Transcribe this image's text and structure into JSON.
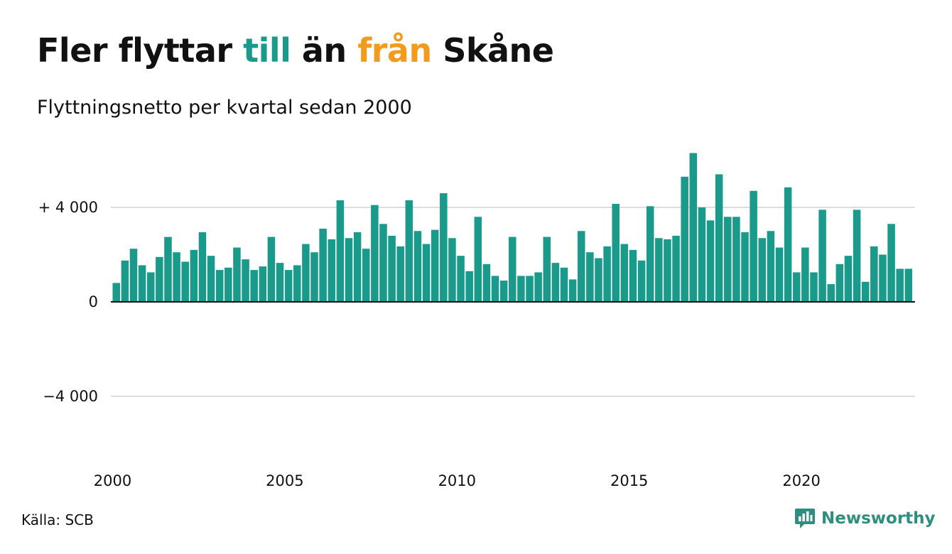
{
  "title": {
    "part1": "Fler flyttar ",
    "part2": "till",
    "part3": " än ",
    "part4": "från",
    "part5": " Skåne"
  },
  "subtitle": "Flyttningsnetto per kvartal sedan 2000",
  "source": "Källa: SCB",
  "brand": {
    "name": "Newsworthy",
    "icon": "newsworthy-logo-icon"
  },
  "colors": {
    "bar": "#1a9a8b",
    "till": "#1a9a8b",
    "fran": "#f29b1d",
    "grid": "#dddddd",
    "axis": "#111111",
    "brand": "#2f8f7f"
  },
  "chart_data": {
    "type": "bar",
    "title": "Fler flyttar till än från Skåne",
    "subtitle": "Flyttningsnetto per kvartal sedan 2000",
    "xlabel": "",
    "ylabel": "",
    "x_start_year": 2000,
    "periods_per_year": 4,
    "ylim": [
      -6500,
      6500
    ],
    "yticks": [
      {
        "value": 4000,
        "label": "+ 4 000"
      },
      {
        "value": 0,
        "label": "0"
      },
      {
        "value": -4000,
        "label": "−4 000"
      }
    ],
    "xticks": [
      {
        "year": 2000,
        "label": "2000"
      },
      {
        "year": 2005,
        "label": "2005"
      },
      {
        "year": 2010,
        "label": "2010"
      },
      {
        "year": 2015,
        "label": "2015"
      },
      {
        "year": 2020,
        "label": "2020"
      }
    ],
    "grid": true,
    "values": [
      800,
      1750,
      2250,
      1550,
      1250,
      1900,
      2750,
      2100,
      1700,
      2200,
      2950,
      1950,
      1350,
      1450,
      2300,
      1800,
      1350,
      1500,
      2750,
      1650,
      1350,
      1550,
      2450,
      2100,
      3100,
      2650,
      4300,
      2700,
      2950,
      2250,
      4100,
      3300,
      2800,
      2350,
      4300,
      3000,
      2450,
      3050,
      4600,
      2700,
      1950,
      1300,
      3600,
      1600,
      1100,
      900,
      2750,
      1100,
      1100,
      1250,
      2750,
      1650,
      1450,
      950,
      3000,
      2100,
      1850,
      2350,
      4150,
      2450,
      2200,
      1750,
      4050,
      2700,
      2650,
      2800,
      5300,
      6300,
      4000,
      3450,
      5400,
      3600,
      3600,
      2950,
      4700,
      2700,
      3000,
      2300,
      4850,
      1250,
      2300,
      1250,
      3900,
      750,
      1600,
      1950,
      3900,
      850,
      2350,
      2000,
      3300,
      1400,
      1400
    ]
  }
}
